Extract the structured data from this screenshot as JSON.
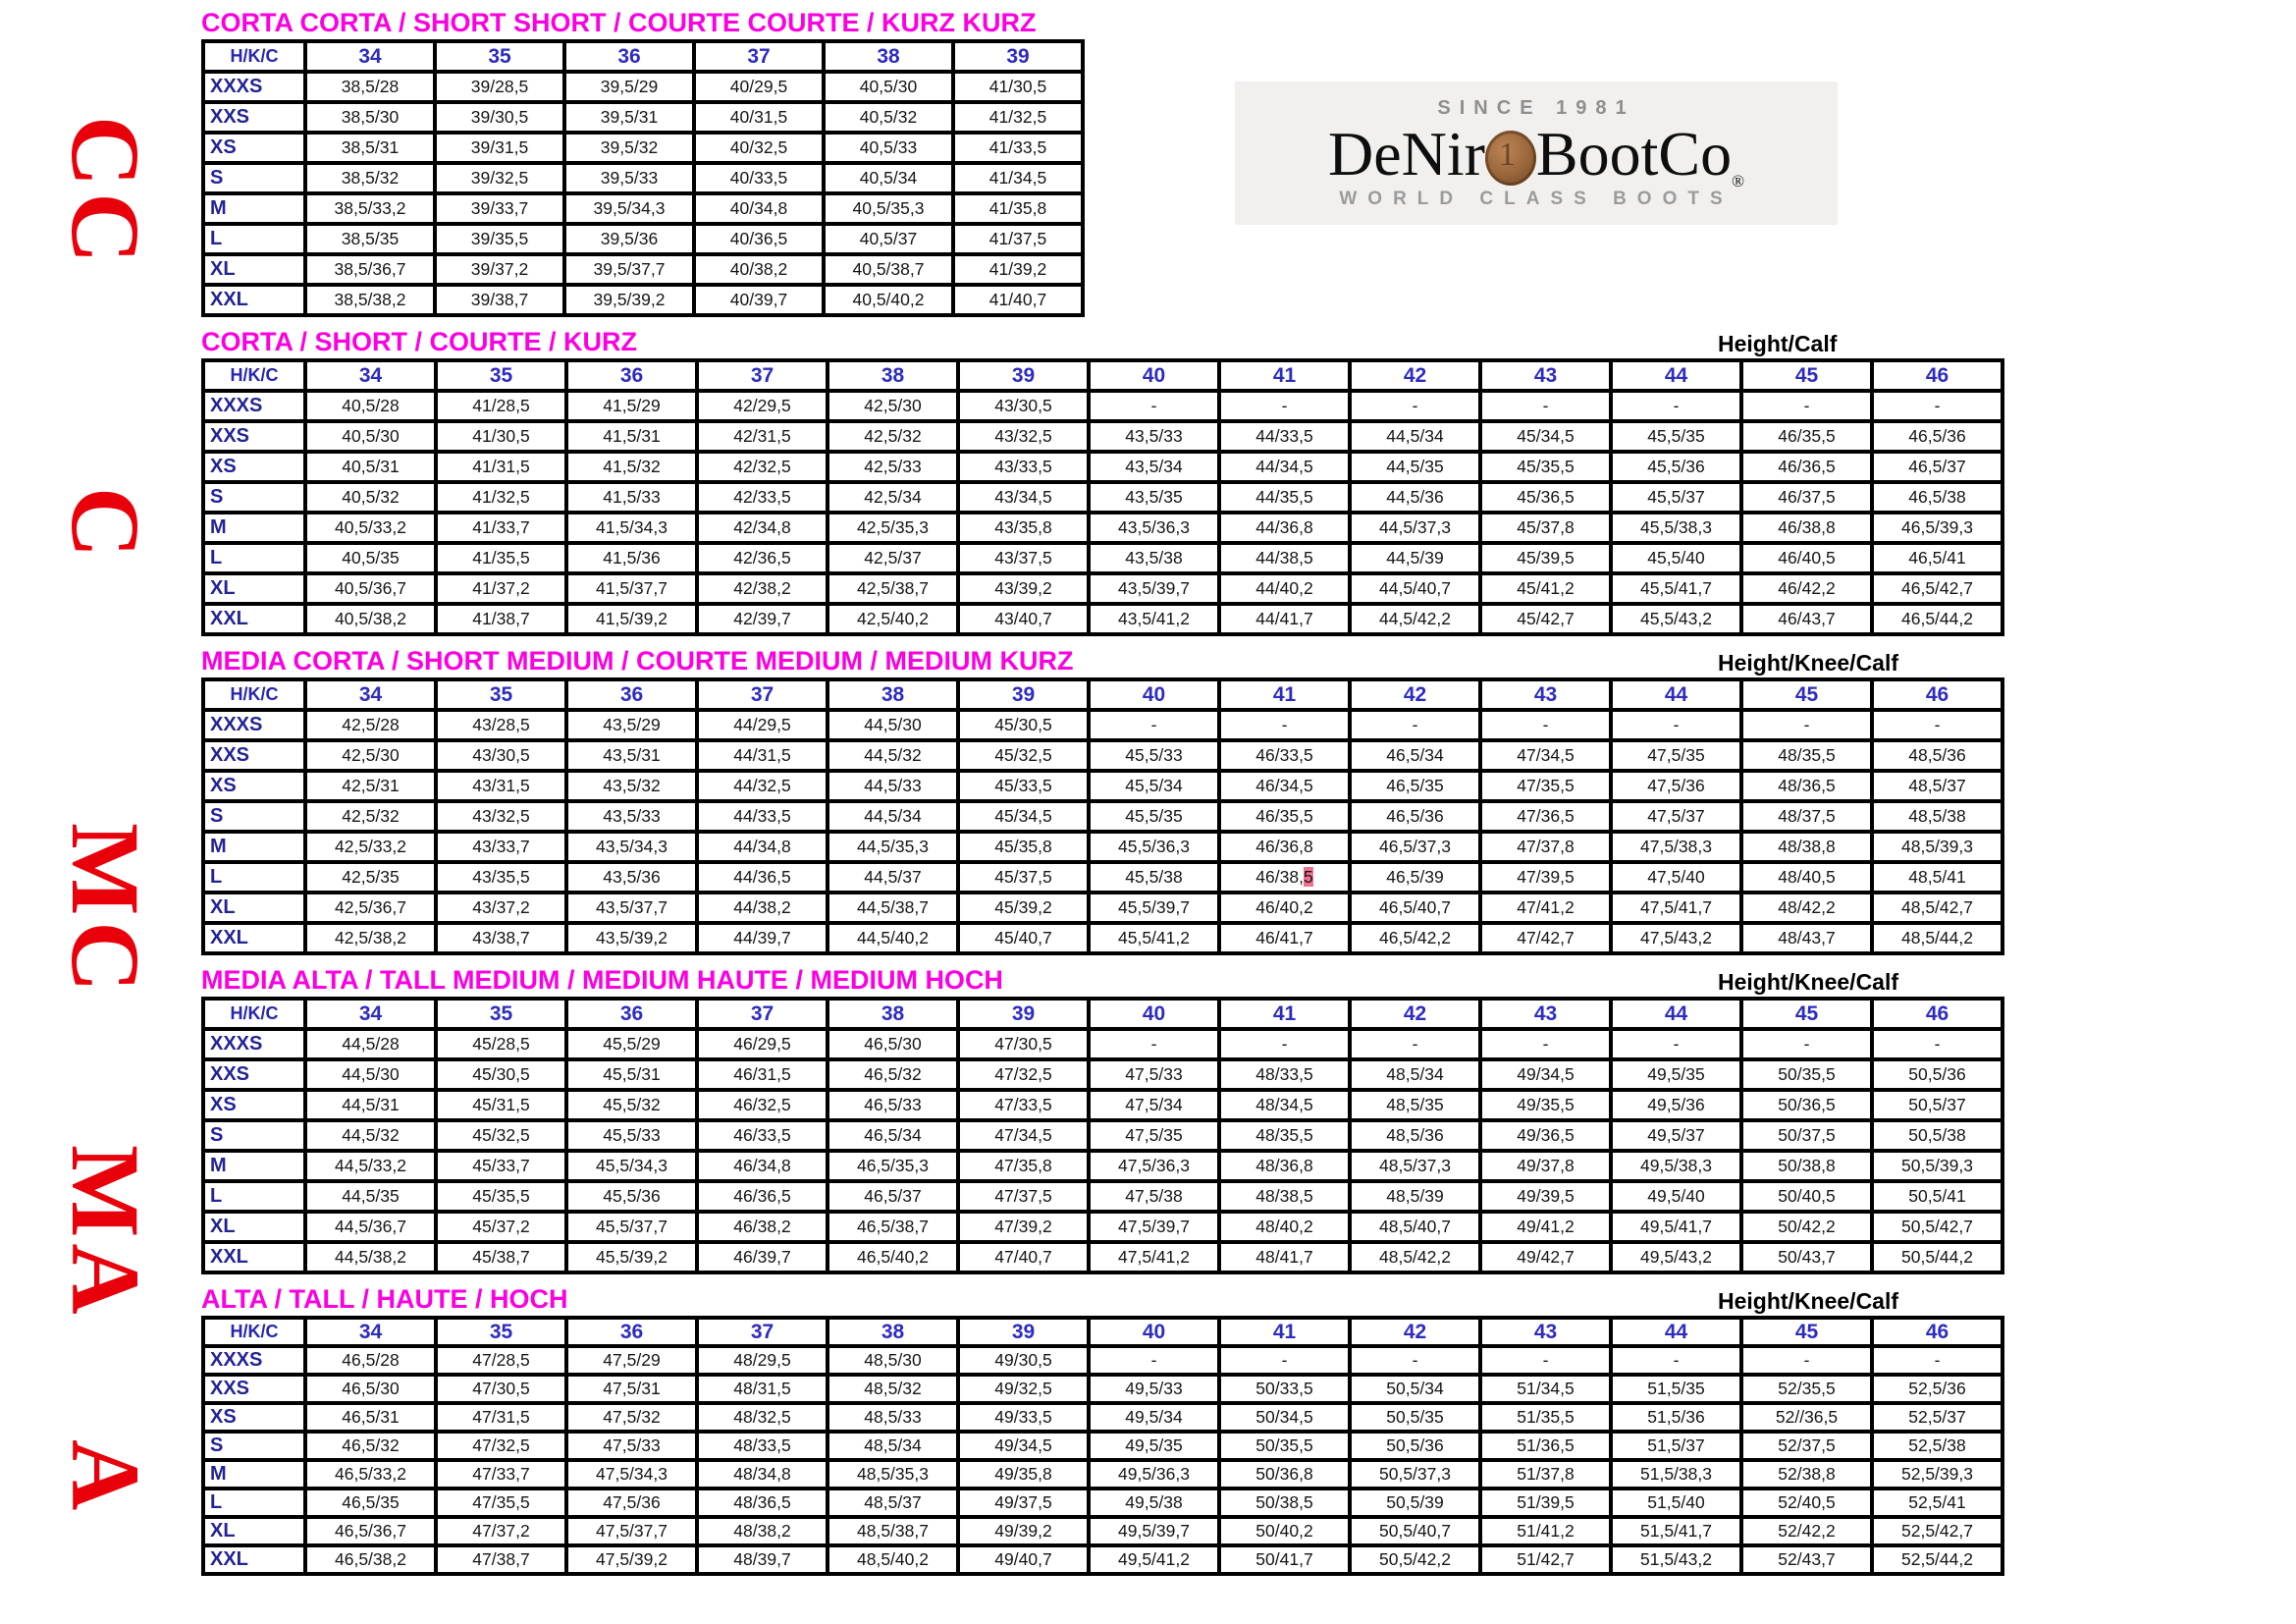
{
  "side_labels": [
    "CC",
    "C",
    "MC",
    "MA",
    "A"
  ],
  "logo": {
    "since": "SINCE 1981",
    "brand_left": "DeNir",
    "brand_right": "BootCo",
    "registered": "®",
    "tagline": "WORLD CLASS BOOTS",
    "coin_icon": "copper-coin"
  },
  "colors": {
    "title_magenta": "#fb00e0",
    "header_blue": "#2e2cc0",
    "row_label_blue": "#232394",
    "side_label_red": "#e8000b",
    "highlight_pink": "#f2718e",
    "border_black": "#000000"
  },
  "tables": [
    {
      "title": "CORTA CORTA / SHORT SHORT / COURTE COURTE / KURZ KURZ",
      "note": "",
      "corner_label": "H/K/C",
      "columns": [
        "34",
        "35",
        "36",
        "37",
        "38",
        "39"
      ],
      "rows": [
        {
          "size": "XXXS",
          "values": [
            "38,5/28",
            "39/28,5",
            "39,5/29",
            "40/29,5",
            "40,5/30",
            "41/30,5"
          ]
        },
        {
          "size": "XXS",
          "values": [
            "38,5/30",
            "39/30,5",
            "39,5/31",
            "40/31,5",
            "40,5/32",
            "41/32,5"
          ]
        },
        {
          "size": "XS",
          "values": [
            "38,5/31",
            "39/31,5",
            "39,5/32",
            "40/32,5",
            "40,5/33",
            "41/33,5"
          ]
        },
        {
          "size": "S",
          "values": [
            "38,5/32",
            "39/32,5",
            "39,5/33",
            "40/33,5",
            "40,5/34",
            "41/34,5"
          ]
        },
        {
          "size": "M",
          "values": [
            "38,5/33,2",
            "39/33,7",
            "39,5/34,3",
            "40/34,8",
            "40,5/35,3",
            "41/35,8"
          ]
        },
        {
          "size": "L",
          "values": [
            "38,5/35",
            "39/35,5",
            "39,5/36",
            "40/36,5",
            "40,5/37",
            "41/37,5"
          ]
        },
        {
          "size": "XL",
          "values": [
            "38,5/36,7",
            "39/37,2",
            "39,5/37,7",
            "40/38,2",
            "40,5/38,7",
            "41/39,2"
          ]
        },
        {
          "size": "XXL",
          "values": [
            "38,5/38,2",
            "39/38,7",
            "39,5/39,2",
            "40/39,7",
            "40,5/40,2",
            "41/40,7"
          ]
        }
      ]
    },
    {
      "title": "CORTA / SHORT / COURTE / KURZ",
      "note": "Height/Calf",
      "corner_label": "H/K/C",
      "columns": [
        "34",
        "35",
        "36",
        "37",
        "38",
        "39",
        "40",
        "41",
        "42",
        "43",
        "44",
        "45",
        "46"
      ],
      "rows": [
        {
          "size": "XXXS",
          "values": [
            "40,5/28",
            "41/28,5",
            "41,5/29",
            "42/29,5",
            "42,5/30",
            "43/30,5",
            "-",
            "-",
            "-",
            "-",
            "-",
            "-",
            "-"
          ]
        },
        {
          "size": "XXS",
          "values": [
            "40,5/30",
            "41/30,5",
            "41,5/31",
            "42/31,5",
            "42,5/32",
            "43/32,5",
            "43,5/33",
            "44/33,5",
            "44,5/34",
            "45/34,5",
            "45,5/35",
            "46/35,5",
            "46,5/36"
          ]
        },
        {
          "size": "XS",
          "values": [
            "40,5/31",
            "41/31,5",
            "41,5/32",
            "42/32,5",
            "42,5/33",
            "43/33,5",
            "43,5/34",
            "44/34,5",
            "44,5/35",
            "45/35,5",
            "45,5/36",
            "46/36,5",
            "46,5/37"
          ]
        },
        {
          "size": "S",
          "values": [
            "40,5/32",
            "41/32,5",
            "41,5/33",
            "42/33,5",
            "42,5/34",
            "43/34,5",
            "43,5/35",
            "44/35,5",
            "44,5/36",
            "45/36,5",
            "45,5/37",
            "46/37,5",
            "46,5/38"
          ]
        },
        {
          "size": "M",
          "values": [
            "40,5/33,2",
            "41/33,7",
            "41,5/34,3",
            "42/34,8",
            "42,5/35,3",
            "43/35,8",
            "43,5/36,3",
            "44/36,8",
            "44,5/37,3",
            "45/37,8",
            "45,5/38,3",
            "46/38,8",
            "46,5/39,3"
          ]
        },
        {
          "size": "L",
          "values": [
            "40,5/35",
            "41/35,5",
            "41,5/36",
            "42/36,5",
            "42,5/37",
            "43/37,5",
            "43,5/38",
            "44/38,5",
            "44,5/39",
            "45/39,5",
            "45,5/40",
            "46/40,5",
            "46,5/41"
          ]
        },
        {
          "size": "XL",
          "values": [
            "40,5/36,7",
            "41/37,2",
            "41,5/37,7",
            "42/38,2",
            "42,5/38,7",
            "43/39,2",
            "43,5/39,7",
            "44/40,2",
            "44,5/40,7",
            "45/41,2",
            "45,5/41,7",
            "46/42,2",
            "46,5/42,7"
          ]
        },
        {
          "size": "XXL",
          "values": [
            "40,5/38,2",
            "41/38,7",
            "41,5/39,2",
            "42/39,7",
            "42,5/40,2",
            "43/40,7",
            "43,5/41,2",
            "44/41,7",
            "44,5/42,2",
            "45/42,7",
            "45,5/43,2",
            "46/43,7",
            "46,5/44,2"
          ]
        }
      ]
    },
    {
      "title": "MEDIA CORTA / SHORT MEDIUM / COURTE MEDIUM / MEDIUM KURZ",
      "note": "Height/Knee/Calf",
      "corner_label": "H/K/C",
      "columns": [
        "34",
        "35",
        "36",
        "37",
        "38",
        "39",
        "40",
        "41",
        "42",
        "43",
        "44",
        "45",
        "46"
      ],
      "rows": [
        {
          "size": "XXXS",
          "values": [
            "42,5/28",
            "43/28,5",
            "43,5/29",
            "44/29,5",
            "44,5/30",
            "45/30,5",
            "-",
            "-",
            "-",
            "-",
            "-",
            "-",
            "-"
          ]
        },
        {
          "size": "XXS",
          "values": [
            "42,5/30",
            "43/30,5",
            "43,5/31",
            "44/31,5",
            "44,5/32",
            "45/32,5",
            "45,5/33",
            "46/33,5",
            "46,5/34",
            "47/34,5",
            "47,5/35",
            "48/35,5",
            "48,5/36"
          ]
        },
        {
          "size": "XS",
          "values": [
            "42,5/31",
            "43/31,5",
            "43,5/32",
            "44/32,5",
            "44,5/33",
            "45/33,5",
            "45,5/34",
            "46/34,5",
            "46,5/35",
            "47/35,5",
            "47,5/36",
            "48/36,5",
            "48,5/37"
          ]
        },
        {
          "size": "S",
          "values": [
            "42,5/32",
            "43/32,5",
            "43,5/33",
            "44/33,5",
            "44,5/34",
            "45/34,5",
            "45,5/35",
            "46/35,5",
            "46,5/36",
            "47/36,5",
            "47,5/37",
            "48/37,5",
            "48,5/38"
          ]
        },
        {
          "size": "M",
          "values": [
            "42,5/33,2",
            "43/33,7",
            "43,5/34,3",
            "44/34,8",
            "44,5/35,3",
            "45/35,8",
            "45,5/36,3",
            "46/36,8",
            "46,5/37,3",
            "47/37,8",
            "47,5/38,3",
            "48/38,8",
            "48,5/39,3"
          ]
        },
        {
          "size": "L",
          "values": [
            "42,5/35",
            "43/35,5",
            "43,5/36",
            "44/36,5",
            "44,5/37",
            "45/37,5",
            "45,5/38",
            "46/38,[5]",
            "46,5/39",
            "47/39,5",
            "47,5/40",
            "48/40,5",
            "48,5/41"
          ]
        },
        {
          "size": "XL",
          "values": [
            "42,5/36,7",
            "43/37,2",
            "43,5/37,7",
            "44/38,2",
            "44,5/38,7",
            "45/39,2",
            "45,5/39,7",
            "46/40,2",
            "46,5/40,7",
            "47/41,2",
            "47,5/41,7",
            "48/42,2",
            "48,5/42,7"
          ]
        },
        {
          "size": "XXL",
          "values": [
            "42,5/38,2",
            "43/38,7",
            "43,5/39,2",
            "44/39,7",
            "44,5/40,2",
            "45/40,7",
            "45,5/41,2",
            "46/41,7",
            "46,5/42,2",
            "47/42,7",
            "47,5/43,2",
            "48/43,7",
            "48,5/44,2"
          ]
        }
      ]
    },
    {
      "title": "MEDIA ALTA / TALL MEDIUM / MEDIUM HAUTE / MEDIUM HOCH",
      "note": "Height/Knee/Calf",
      "corner_label": "H/K/C",
      "columns": [
        "34",
        "35",
        "36",
        "37",
        "38",
        "39",
        "40",
        "41",
        "42",
        "43",
        "44",
        "45",
        "46"
      ],
      "rows": [
        {
          "size": "XXXS",
          "values": [
            "44,5/28",
            "45/28,5",
            "45,5/29",
            "46/29,5",
            "46,5/30",
            "47/30,5",
            "-",
            "-",
            "-",
            "-",
            "-",
            "-",
            "-"
          ]
        },
        {
          "size": "XXS",
          "values": [
            "44,5/30",
            "45/30,5",
            "45,5/31",
            "46/31,5",
            "46,5/32",
            "47/32,5",
            "47,5/33",
            "48/33,5",
            "48,5/34",
            "49/34,5",
            "49,5/35",
            "50/35,5",
            "50,5/36"
          ]
        },
        {
          "size": "XS",
          "values": [
            "44,5/31",
            "45/31,5",
            "45,5/32",
            "46/32,5",
            "46,5/33",
            "47/33,5",
            "47,5/34",
            "48/34,5",
            "48,5/35",
            "49/35,5",
            "49,5/36",
            "50/36,5",
            "50,5/37"
          ]
        },
        {
          "size": "S",
          "values": [
            "44,5/32",
            "45/32,5",
            "45,5/33",
            "46/33,5",
            "46,5/34",
            "47/34,5",
            "47,5/35",
            "48/35,5",
            "48,5/36",
            "49/36,5",
            "49,5/37",
            "50/37,5",
            "50,5/38"
          ]
        },
        {
          "size": "M",
          "values": [
            "44,5/33,2",
            "45/33,7",
            "45,5/34,3",
            "46/34,8",
            "46,5/35,3",
            "47/35,8",
            "47,5/36,3",
            "48/36,8",
            "48,5/37,3",
            "49/37,8",
            "49,5/38,3",
            "50/38,8",
            "50,5/39,3"
          ]
        },
        {
          "size": "L",
          "values": [
            "44,5/35",
            "45/35,5",
            "45,5/36",
            "46/36,5",
            "46,5/37",
            "47/37,5",
            "47,5/38",
            "48/38,5",
            "48,5/39",
            "49/39,5",
            "49,5/40",
            "50/40,5",
            "50,5/41"
          ]
        },
        {
          "size": "XL",
          "values": [
            "44,5/36,7",
            "45/37,2",
            "45,5/37,7",
            "46/38,2",
            "46,5/38,7",
            "47/39,2",
            "47,5/39,7",
            "48/40,2",
            "48,5/40,7",
            "49/41,2",
            "49,5/41,7",
            "50/42,2",
            "50,5/42,7"
          ]
        },
        {
          "size": "XXL",
          "values": [
            "44,5/38,2",
            "45/38,7",
            "45,5/39,2",
            "46/39,7",
            "46,5/40,2",
            "47/40,7",
            "47,5/41,2",
            "48/41,7",
            "48,5/42,2",
            "49/42,7",
            "49,5/43,2",
            "50/43,7",
            "50,5/44,2"
          ]
        }
      ]
    },
    {
      "title": "ALTA / TALL / HAUTE / HOCH",
      "note": "Height/Knee/Calf",
      "corner_label": "H/K/C",
      "columns": [
        "34",
        "35",
        "36",
        "37",
        "38",
        "39",
        "40",
        "41",
        "42",
        "43",
        "44",
        "45",
        "46"
      ],
      "rows": [
        {
          "size": "XXXS",
          "values": [
            "46,5/28",
            "47/28,5",
            "47,5/29",
            "48/29,5",
            "48,5/30",
            "49/30,5",
            "-",
            "-",
            "-",
            "-",
            "-",
            "-",
            "-"
          ]
        },
        {
          "size": "XXS",
          "values": [
            "46,5/30",
            "47/30,5",
            "47,5/31",
            "48/31,5",
            "48,5/32",
            "49/32,5",
            "49,5/33",
            "50/33,5",
            "50,5/34",
            "51/34,5",
            "51,5/35",
            "52/35,5",
            "52,5/36"
          ]
        },
        {
          "size": "XS",
          "values": [
            "46,5/31",
            "47/31,5",
            "47,5/32",
            "48/32,5",
            "48,5/33",
            "49/33,5",
            "49,5/34",
            "50/34,5",
            "50,5/35",
            "51/35,5",
            "51,5/36",
            "52//36,5",
            "52,5/37"
          ]
        },
        {
          "size": "S",
          "values": [
            "46,5/32",
            "47/32,5",
            "47,5/33",
            "48/33,5",
            "48,5/34",
            "49/34,5",
            "49,5/35",
            "50/35,5",
            "50,5/36",
            "51/36,5",
            "51,5/37",
            "52/37,5",
            "52,5/38"
          ]
        },
        {
          "size": "M",
          "values": [
            "46,5/33,2",
            "47/33,7",
            "47,5/34,3",
            "48/34,8",
            "48,5/35,3",
            "49/35,8",
            "49,5/36,3",
            "50/36,8",
            "50,5/37,3",
            "51/37,8",
            "51,5/38,3",
            "52/38,8",
            "52,5/39,3"
          ]
        },
        {
          "size": "L",
          "values": [
            "46,5/35",
            "47/35,5",
            "47,5/36",
            "48/36,5",
            "48,5/37",
            "49/37,5",
            "49,5/38",
            "50/38,5",
            "50,5/39",
            "51/39,5",
            "51,5/40",
            "52/40,5",
            "52,5/41"
          ]
        },
        {
          "size": "XL",
          "values": [
            "46,5/36,7",
            "47/37,2",
            "47,5/37,7",
            "48/38,2",
            "48,5/38,7",
            "49/39,2",
            "49,5/39,7",
            "50/40,2",
            "50,5/40,7",
            "51/41,2",
            "51,5/41,7",
            "52/42,2",
            "52,5/42,7"
          ]
        },
        {
          "size": "XXL",
          "values": [
            "46,5/38,2",
            "47/38,7",
            "47,5/39,2",
            "48/39,7",
            "48,5/40,2",
            "49/40,7",
            "49,5/41,2",
            "50/41,7",
            "50,5/42,2",
            "51/42,7",
            "51,5/43,2",
            "52/43,7",
            "52,5/44,2"
          ]
        }
      ]
    }
  ]
}
